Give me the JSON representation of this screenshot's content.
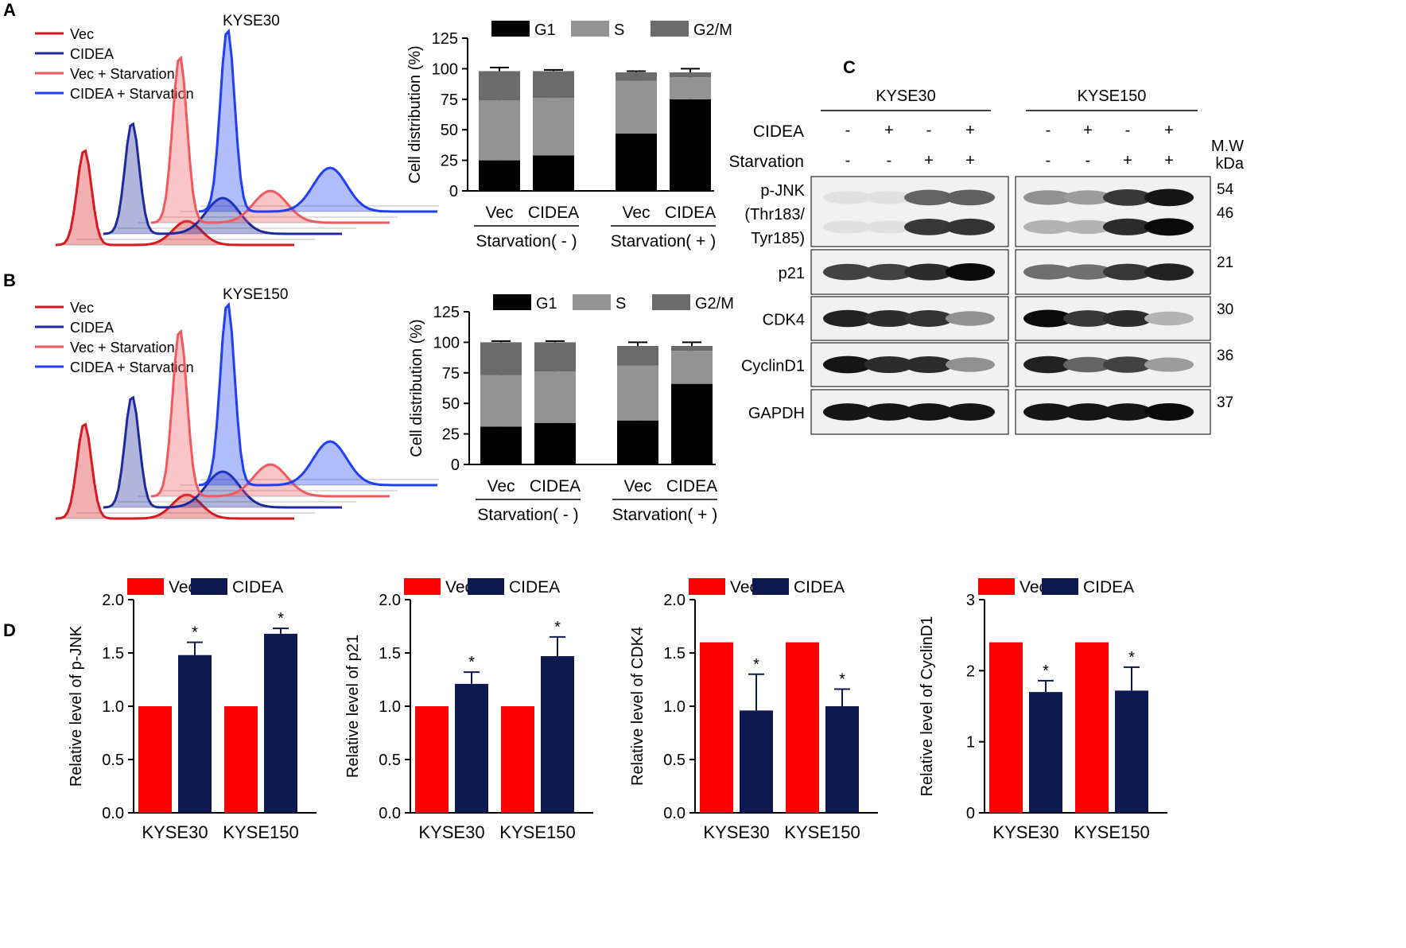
{
  "panel_labels": {
    "a": "A",
    "b": "B",
    "c": "C",
    "d": "D"
  },
  "flow_panels": [
    {
      "cell_line": "KYSE30",
      "legend": [
        {
          "label": "Vec",
          "color": "#d71920"
        },
        {
          "label": "CIDEA",
          "color": "#1f2a9a"
        },
        {
          "label": "Vec + Starvation",
          "color": "#f05a5e"
        },
        {
          "label": "CIDEA + Starvation",
          "color": "#1f3ff0"
        }
      ]
    },
    {
      "cell_line": "KYSE150",
      "legend": [
        {
          "label": "Vec",
          "color": "#d71920"
        },
        {
          "label": "CIDEA",
          "color": "#1f2a9a"
        },
        {
          "label": "Vec + Starvation",
          "color": "#f05a5e"
        },
        {
          "label": "CIDEA + Starvation",
          "color": "#1f3ff0"
        }
      ]
    }
  ],
  "chart_data": [
    {
      "id": "A-bars",
      "type": "bar",
      "stacked": true,
      "title": "",
      "ylabel": "Cell distribution (%)",
      "ylim": [
        0,
        125
      ],
      "yticks": [
        "0",
        "25",
        "50",
        "75",
        "100",
        "125"
      ],
      "categories": [
        "Vec",
        "CIDEA",
        "Vec",
        "CIDEA"
      ],
      "groups": [
        {
          "label": "Starvation( - )",
          "span": [
            0,
            1
          ]
        },
        {
          "label": "Starvation( + )",
          "span": [
            2,
            3
          ]
        }
      ],
      "series": [
        {
          "name": "G1",
          "color": "#000000",
          "values": [
            25,
            29,
            47,
            75
          ],
          "errors": [
            1,
            1,
            1,
            2
          ]
        },
        {
          "name": "S",
          "color": "#939393",
          "values": [
            49,
            47,
            43,
            18
          ],
          "errors": [
            2,
            1,
            2,
            2
          ]
        },
        {
          "name": "G2/M",
          "color": "#6b6b6b",
          "values": [
            24,
            22,
            7,
            4
          ],
          "errors": [
            3,
            1,
            1,
            3
          ]
        }
      ]
    },
    {
      "id": "B-bars",
      "type": "bar",
      "stacked": true,
      "title": "",
      "ylabel": "Cell distribution (%)",
      "ylim": [
        0,
        125
      ],
      "yticks": [
        "0",
        "25",
        "50",
        "75",
        "100",
        "125"
      ],
      "categories": [
        "Vec",
        "CIDEA",
        "Vec",
        "CIDEA"
      ],
      "groups": [
        {
          "label": "Starvation( - )",
          "span": [
            0,
            1
          ]
        },
        {
          "label": "Starvation( + )",
          "span": [
            2,
            3
          ]
        }
      ],
      "series": [
        {
          "name": "G1",
          "color": "#000000",
          "values": [
            31,
            34,
            36,
            66
          ],
          "errors": [
            1,
            1,
            1,
            2
          ]
        },
        {
          "name": "S",
          "color": "#939393",
          "values": [
            42,
            42,
            45,
            27
          ],
          "errors": [
            1,
            1,
            3,
            2
          ]
        },
        {
          "name": "G2/M",
          "color": "#6b6b6b",
          "values": [
            27,
            24,
            16,
            4
          ],
          "errors": [
            1,
            1,
            3,
            3
          ]
        }
      ]
    },
    {
      "id": "D1",
      "type": "bar",
      "ylabel": "Relative level of p-JNK",
      "ylim": [
        0,
        2.0
      ],
      "yticks": [
        "0.0",
        "0.5",
        "1.0",
        "1.5",
        "2.0"
      ],
      "categories": [
        "KYSE30",
        "KYSE150"
      ],
      "series": [
        {
          "name": "Vec",
          "color": "#ff0000",
          "values": [
            1.0,
            1.0
          ],
          "errors": [
            0,
            0
          ]
        },
        {
          "name": "CIDEA",
          "color": "#0e1a4f",
          "values": [
            1.48,
            1.68
          ],
          "errors": [
            0.12,
            0.05
          ]
        }
      ],
      "annotations": [
        "*",
        "*"
      ]
    },
    {
      "id": "D2",
      "type": "bar",
      "ylabel": "Relative level of p21",
      "ylim": [
        0,
        2.0
      ],
      "yticks": [
        "0.0",
        "0.5",
        "1.0",
        "1.5",
        "2.0"
      ],
      "categories": [
        "KYSE30",
        "KYSE150"
      ],
      "series": [
        {
          "name": "Vec",
          "color": "#ff0000",
          "values": [
            1.0,
            1.0
          ],
          "errors": [
            0,
            0
          ]
        },
        {
          "name": "CIDEA",
          "color": "#0e1a4f",
          "values": [
            1.21,
            1.47
          ],
          "errors": [
            0.11,
            0.18
          ]
        }
      ],
      "annotations": [
        "*",
        "*"
      ]
    },
    {
      "id": "D3",
      "type": "bar",
      "ylabel": "Relative level of CDK4",
      "ylim": [
        0,
        2.0
      ],
      "yticks": [
        "0.0",
        "0.5",
        "1.0",
        "1.5",
        "2.0"
      ],
      "categories": [
        "KYSE30",
        "KYSE150"
      ],
      "series": [
        {
          "name": "Vec",
          "color": "#ff0000",
          "values": [
            1.6,
            1.6
          ],
          "errors": [
            0,
            0
          ]
        },
        {
          "name": "CIDEA",
          "color": "#0e1a4f",
          "values": [
            0.96,
            1.0
          ],
          "errors": [
            0.34,
            0.16
          ]
        }
      ],
      "annotations": [
        "*",
        "*"
      ]
    },
    {
      "id": "D4",
      "type": "bar",
      "ylabel": "Relative level of  CyclinD1",
      "ylim": [
        0,
        3
      ],
      "yticks": [
        "0",
        "1",
        "2",
        "3"
      ],
      "categories": [
        "KYSE30",
        "KYSE150"
      ],
      "series": [
        {
          "name": "Vec",
          "color": "#ff0000",
          "values": [
            2.4,
            2.4
          ],
          "errors": [
            0,
            0
          ]
        },
        {
          "name": "CIDEA",
          "color": "#0e1a4f",
          "values": [
            1.7,
            1.72
          ],
          "errors": [
            0.16,
            0.33
          ]
        }
      ],
      "annotations": [
        "*",
        "*"
      ]
    }
  ],
  "western": {
    "groups": [
      {
        "label": "KYSE30"
      },
      {
        "label": "KYSE150"
      }
    ],
    "conditions": [
      {
        "label": "CIDEA",
        "signs": [
          "-",
          "+",
          "-",
          "+"
        ]
      },
      {
        "label": "Starvation",
        "signs": [
          "-",
          "-",
          "+",
          "+"
        ]
      }
    ],
    "mw_header": "M.W",
    "mw_unit": "kDa",
    "rows": [
      {
        "label_lines": [
          "p-JNK",
          "(Thr183/",
          "Tyr185)"
        ],
        "mw": [
          "54",
          "46"
        ],
        "bands": [
          [
            [
              0.05,
              0.05,
              0.6,
              0.62
            ],
            [
              0.05,
              0.05,
              0.8,
              0.82
            ]
          ],
          [
            [
              0.4,
              0.35,
              0.8,
              0.95
            ],
            [
              0.25,
              0.25,
              0.85,
              1.0
            ]
          ]
        ]
      },
      {
        "label_lines": [
          "p21"
        ],
        "mw": [
          "21"
        ],
        "bands": [
          [
            [
              0.75,
              0.75,
              0.85,
              1.0
            ]
          ],
          [
            [
              0.55,
              0.55,
              0.8,
              0.9
            ]
          ]
        ]
      },
      {
        "label_lines": [
          "CDK4"
        ],
        "mw": [
          "30"
        ],
        "bands": [
          [
            [
              0.9,
              0.85,
              0.82,
              0.4
            ]
          ],
          [
            [
              1.0,
              0.8,
              0.85,
              0.25
            ]
          ]
        ]
      },
      {
        "label_lines": [
          "CyclinD1"
        ],
        "mw": [
          "36"
        ],
        "bands": [
          [
            [
              0.95,
              0.85,
              0.85,
              0.4
            ]
          ],
          [
            [
              0.9,
              0.6,
              0.75,
              0.35
            ]
          ]
        ]
      },
      {
        "label_lines": [
          "GAPDH"
        ],
        "mw": [
          "37"
        ],
        "bands": [
          [
            [
              0.95,
              0.95,
              0.95,
              0.95
            ]
          ],
          [
            [
              0.95,
              0.95,
              0.95,
              1.0
            ]
          ]
        ]
      }
    ]
  }
}
